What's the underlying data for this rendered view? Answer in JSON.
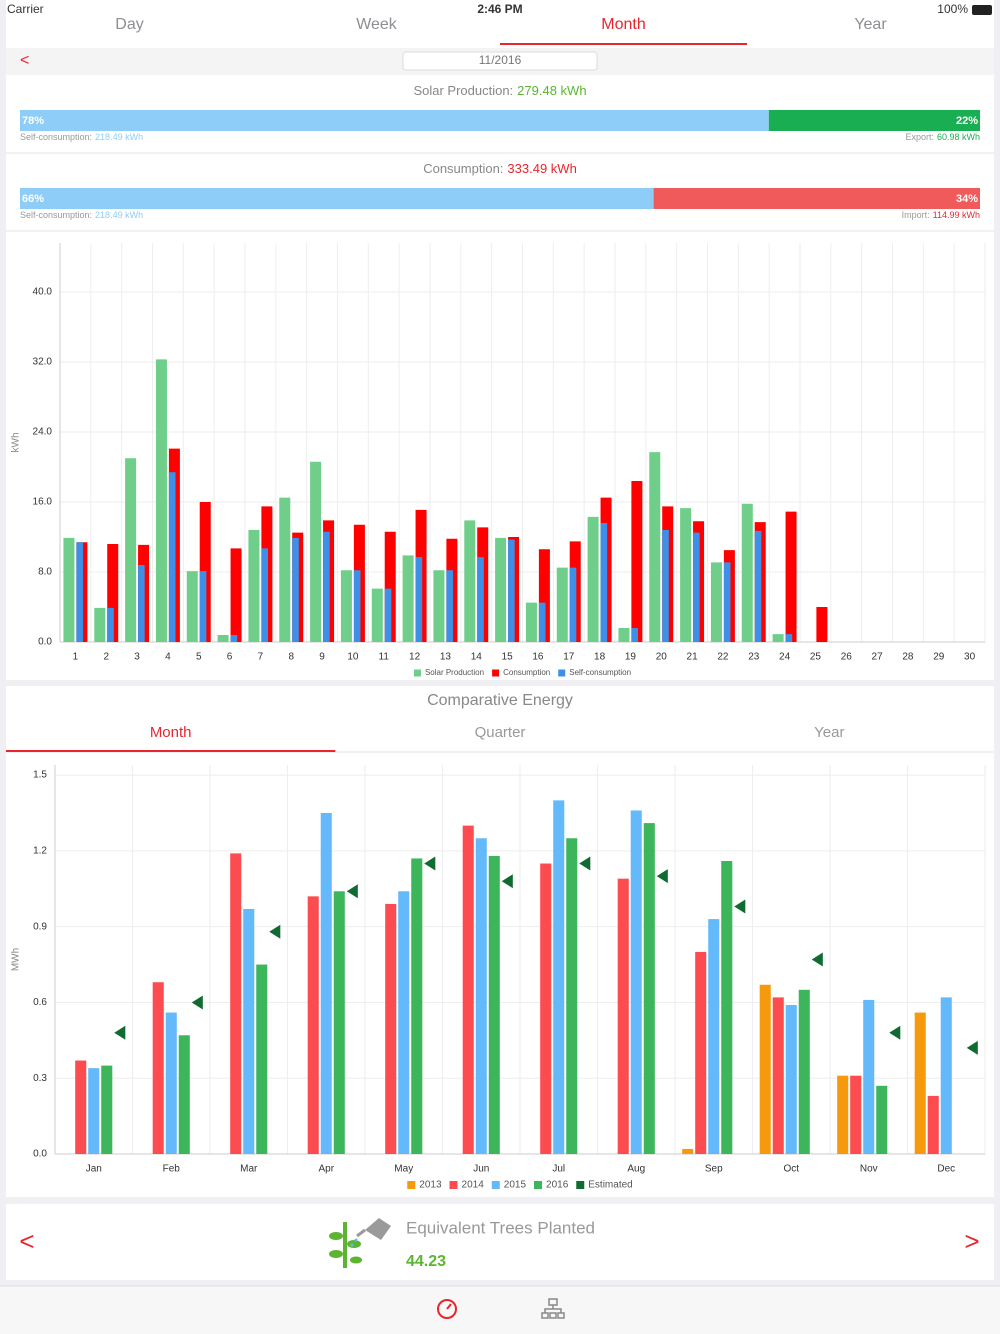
{
  "status_bar": {
    "carrier": "Carrier",
    "time": "2:46 PM",
    "battery": "100%"
  },
  "tabs": {
    "items": [
      "Day",
      "Week",
      "Month",
      "Year"
    ],
    "selected": 2
  },
  "period": {
    "back": "<",
    "date": "11/2016"
  },
  "summaries": [
    {
      "label": "Solar Production:",
      "total": "279.48 kWh",
      "total_color": "#5cb531",
      "segments": [
        {
          "value": 78,
          "label": "78%",
          "color": "#8ecdf8"
        },
        {
          "value": 22,
          "label": "22%",
          "color": "#1aae52"
        }
      ],
      "left_caption": "Self-consumption:",
      "left_value": "218.49 kWh",
      "left_color": "#8ecdf8",
      "right_caption": "Export:",
      "right_value": "60.98 kWh",
      "right_color": "#1aae52"
    },
    {
      "label": "Consumption:",
      "total": "333.49 kWh",
      "total_color": "#e8262f",
      "segments": [
        {
          "value": 66,
          "label": "66%",
          "color": "#8ecdf8"
        },
        {
          "value": 34,
          "label": "34%",
          "color": "#f05a5a"
        }
      ],
      "left_caption": "Self-consumption:",
      "left_value": "218.49 kWh",
      "left_color": "#8ecdf8",
      "right_caption": "Import:",
      "right_value": "114.99 kWh",
      "right_color": "#e8262f"
    }
  ],
  "chart_data": [
    {
      "type": "bar",
      "y_label": "kWh",
      "categories": [
        "1",
        "2",
        "3",
        "4",
        "5",
        "6",
        "7",
        "8",
        "9",
        "10",
        "11",
        "12",
        "13",
        "14",
        "15",
        "16",
        "17",
        "18",
        "19",
        "20",
        "21",
        "22",
        "23",
        "24",
        "25",
        "26",
        "27",
        "28",
        "29",
        "30"
      ],
      "series": [
        {
          "name": "Solar Production",
          "color": "#6fcf8a",
          "values": [
            11.9,
            3.9,
            21.0,
            32.3,
            8.1,
            0.8,
            12.8,
            16.5,
            20.6,
            8.2,
            6.1,
            9.9,
            8.2,
            13.9,
            11.9,
            4.5,
            8.5,
            14.3,
            1.6,
            21.7,
            15.3,
            9.1,
            15.8,
            0.9,
            0,
            null,
            null,
            null,
            null,
            null
          ]
        },
        {
          "name": "Consumption",
          "color": "#ff0000",
          "values": [
            11.4,
            11.2,
            11.1,
            22.1,
            16.0,
            10.7,
            15.5,
            12.5,
            13.9,
            13.4,
            12.6,
            15.1,
            11.8,
            13.1,
            12.0,
            10.6,
            11.5,
            16.5,
            18.4,
            15.5,
            13.8,
            10.5,
            13.7,
            14.9,
            4.0,
            null,
            null,
            null,
            null,
            null
          ]
        },
        {
          "name": "Self-consumption",
          "color": "#3d8fe8",
          "overlay": true,
          "values": [
            11.4,
            3.9,
            8.8,
            19.4,
            8.1,
            0.8,
            10.7,
            11.9,
            12.6,
            8.2,
            6.1,
            9.7,
            8.2,
            9.7,
            11.7,
            4.5,
            8.5,
            13.6,
            1.6,
            12.8,
            12.5,
            9.1,
            12.7,
            0.9,
            0,
            null,
            null,
            null,
            null,
            null
          ]
        }
      ],
      "ylim": [
        0,
        45.6
      ],
      "yticks": [
        {
          "value": 0,
          "label": "0.0"
        },
        {
          "value": 8,
          "label": "8.0"
        },
        {
          "value": 16,
          "label": "16.0"
        },
        {
          "value": 24,
          "label": "24.0"
        },
        {
          "value": 32,
          "label": "32.0"
        },
        {
          "value": 40,
          "label": "40.0"
        }
      ],
      "grid": true,
      "legend": "bottom"
    },
    {
      "type": "bar",
      "title": "Comparative Energy",
      "period_tabs": [
        "Month",
        "Quarter",
        "Year"
      ],
      "selected_period": 0,
      "y_label": "MWh",
      "categories": [
        "Jan",
        "Feb",
        "Mar",
        "Apr",
        "May",
        "Jun",
        "Jul",
        "Aug",
        "Sep",
        "Oct",
        "Nov",
        "Dec"
      ],
      "series": [
        {
          "name": "2013",
          "color": "#f7990c",
          "values": [
            null,
            null,
            null,
            null,
            null,
            null,
            null,
            null,
            0.02,
            0.67,
            0.31,
            0.56
          ]
        },
        {
          "name": "2014",
          "color": "#fc4c50",
          "values": [
            0.37,
            0.68,
            1.19,
            1.02,
            0.99,
            1.3,
            1.15,
            1.09,
            0.8,
            0.62,
            0.31,
            0.23
          ]
        },
        {
          "name": "2015",
          "color": "#64b9fa",
          "values": [
            0.34,
            0.56,
            0.97,
            1.35,
            1.04,
            1.25,
            1.4,
            1.36,
            0.93,
            0.59,
            0.61,
            0.62
          ]
        },
        {
          "name": "2016",
          "color": "#3db55b",
          "values": [
            0.35,
            0.47,
            0.75,
            1.04,
            1.17,
            1.18,
            1.25,
            1.31,
            1.16,
            0.65,
            0.27,
            null
          ]
        },
        {
          "name": "Estimated",
          "color": "#0f6b30",
          "marker": "triangle",
          "values": [
            0.48,
            0.6,
            0.88,
            1.04,
            1.15,
            1.08,
            1.15,
            1.1,
            0.98,
            0.77,
            0.48,
            0.42
          ]
        }
      ],
      "ylim": [
        0,
        1.54
      ],
      "yticks": [
        {
          "value": 0,
          "label": "0.0"
        },
        {
          "value": 0.3,
          "label": "0.3"
        },
        {
          "value": 0.6,
          "label": "0.6"
        },
        {
          "value": 0.9,
          "label": "0.9"
        },
        {
          "value": 1.2,
          "label": "1.2"
        },
        {
          "value": 1.5,
          "label": "1.5"
        }
      ],
      "grid": true,
      "legend": "bottom"
    }
  ],
  "trees": {
    "prev": "<",
    "next": ">",
    "title": "Equivalent Trees Planted",
    "value": "44.23"
  }
}
